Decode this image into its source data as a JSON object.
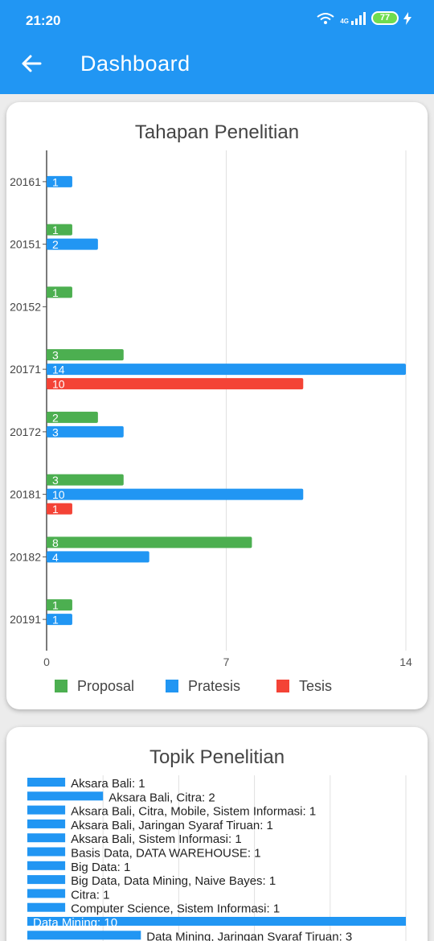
{
  "status_bar": {
    "time": "21:20",
    "network": "4G",
    "battery": "77"
  },
  "app_bar": {
    "title": "Dashboard"
  },
  "icons": {
    "back": "back-arrow-icon",
    "wifi": "wifi-icon",
    "signal": "signal-icon",
    "battery": "battery-icon",
    "charging": "charging-icon"
  },
  "colors": {
    "appbar": "#2196f3",
    "proposal": "#4caf50",
    "pratesis": "#2196f3",
    "tesis": "#f44336"
  },
  "chart_data": [
    {
      "type": "bar",
      "orientation": "horizontal",
      "title": "Tahapan Penelitian",
      "categories": [
        "20161",
        "20151",
        "20152",
        "20171",
        "20172",
        "20181",
        "20182",
        "20191"
      ],
      "series": [
        {
          "name": "Proposal",
          "values": [
            null,
            1,
            1,
            3,
            2,
            3,
            8,
            1
          ]
        },
        {
          "name": "Pratesis",
          "values": [
            1,
            2,
            null,
            14,
            3,
            10,
            4,
            1
          ]
        },
        {
          "name": "Tesis",
          "values": [
            null,
            null,
            null,
            10,
            null,
            1,
            null,
            null
          ]
        }
      ],
      "xlim": [
        0,
        14
      ],
      "xticks": [
        "0",
        "7",
        "14"
      ],
      "grid": true,
      "legend": "bottom"
    },
    {
      "type": "bar",
      "orientation": "horizontal",
      "title": "Topik Penelitian",
      "categories": [
        "Aksara Bali",
        "Aksara Bali, Citra",
        "Aksara Bali, Citra, Mobile, Sistem Informasi",
        "Aksara Bali, Jaringan Syaraf Tiruan",
        "Aksara Bali, Sistem Informasi",
        "Basis Data, DATA WAREHOUSE",
        "Big Data",
        "Big Data, Data Mining, Naive Bayes",
        "Citra",
        "Computer Science, Sistem Informasi",
        "Data Mining",
        "Data Mining, Jaringan Syaraf Tiruan"
      ],
      "values": [
        1,
        2,
        1,
        1,
        1,
        1,
        1,
        1,
        1,
        1,
        10,
        3
      ],
      "labels": [
        "Aksara Bali: 1",
        "Aksara Bali, Citra: 2",
        "Aksara Bali, Citra, Mobile, Sistem Informasi: 1",
        "Aksara Bali, Jaringan Syaraf Tiruan: 1",
        "Aksara Bali, Sistem Informasi: 1",
        "Basis Data, DATA WAREHOUSE: 1",
        "Big Data: 1",
        "Big Data, Data Mining, Naive Bayes: 1",
        "Citra: 1",
        "Computer Science, Sistem Informasi: 1",
        "Data Mining: 10",
        "Data Mining, Jaringan Syaraf Tiruan: 3"
      ],
      "xlim": [
        0,
        10
      ],
      "grid": true
    }
  ]
}
